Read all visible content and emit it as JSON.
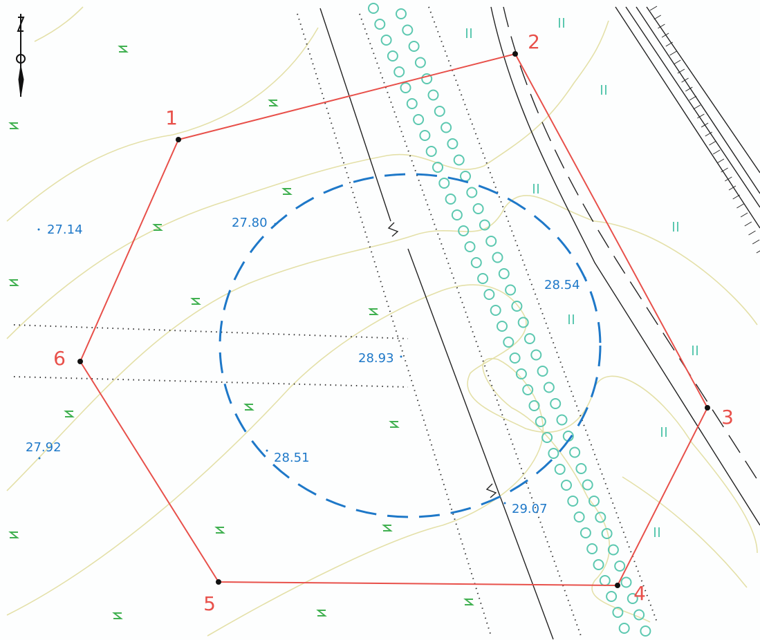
{
  "map": {
    "vertices": [
      "1",
      "2",
      "3",
      "4",
      "5",
      "6"
    ],
    "spot_heights": [
      "27.14",
      "27.80",
      "28.54",
      "28.93",
      "27.92",
      "28.51",
      "29.07"
    ]
  }
}
